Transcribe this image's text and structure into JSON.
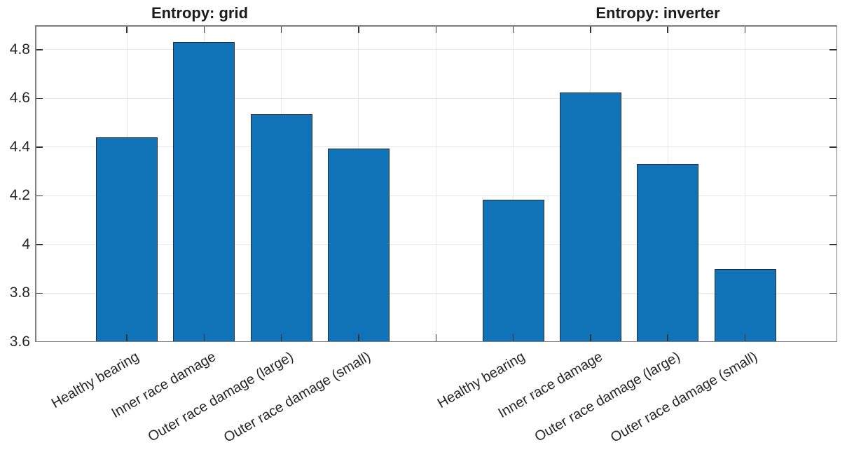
{
  "chart_data": {
    "type": "bar",
    "categories": [
      "Healthy bearing",
      "Inner race damage",
      "Outer race damage (large)",
      "Outer race damage (small)"
    ],
    "series": [
      {
        "name": "Entropy: grid",
        "values": [
          4.44,
          4.83,
          4.535,
          4.395
        ]
      },
      {
        "name": "Entropy: inverter",
        "values": [
          4.185,
          4.625,
          4.33,
          3.9
        ]
      }
    ],
    "ylim": [
      3.6,
      4.9
    ],
    "yticks": [
      3.6,
      3.8,
      4.0,
      4.2,
      4.4,
      4.6,
      4.8
    ],
    "ytick_labels": [
      "3.6",
      "3.8",
      "4",
      "4.2",
      "4.4",
      "4.6",
      "4.8"
    ],
    "xlabel": "",
    "ylabel": "",
    "grid": true,
    "legend": "none",
    "xtick_angle_deg": 30,
    "colors": {
      "bar_fill": "#1173b7",
      "bar_edge": "#262d35",
      "grid_line": "#e7e7e7",
      "axis_border": "#7f7f7f",
      "tick_mark": "#333333",
      "tick_text": "#262626",
      "title_text": "#1c1c1c",
      "background": "#ffffff"
    }
  }
}
